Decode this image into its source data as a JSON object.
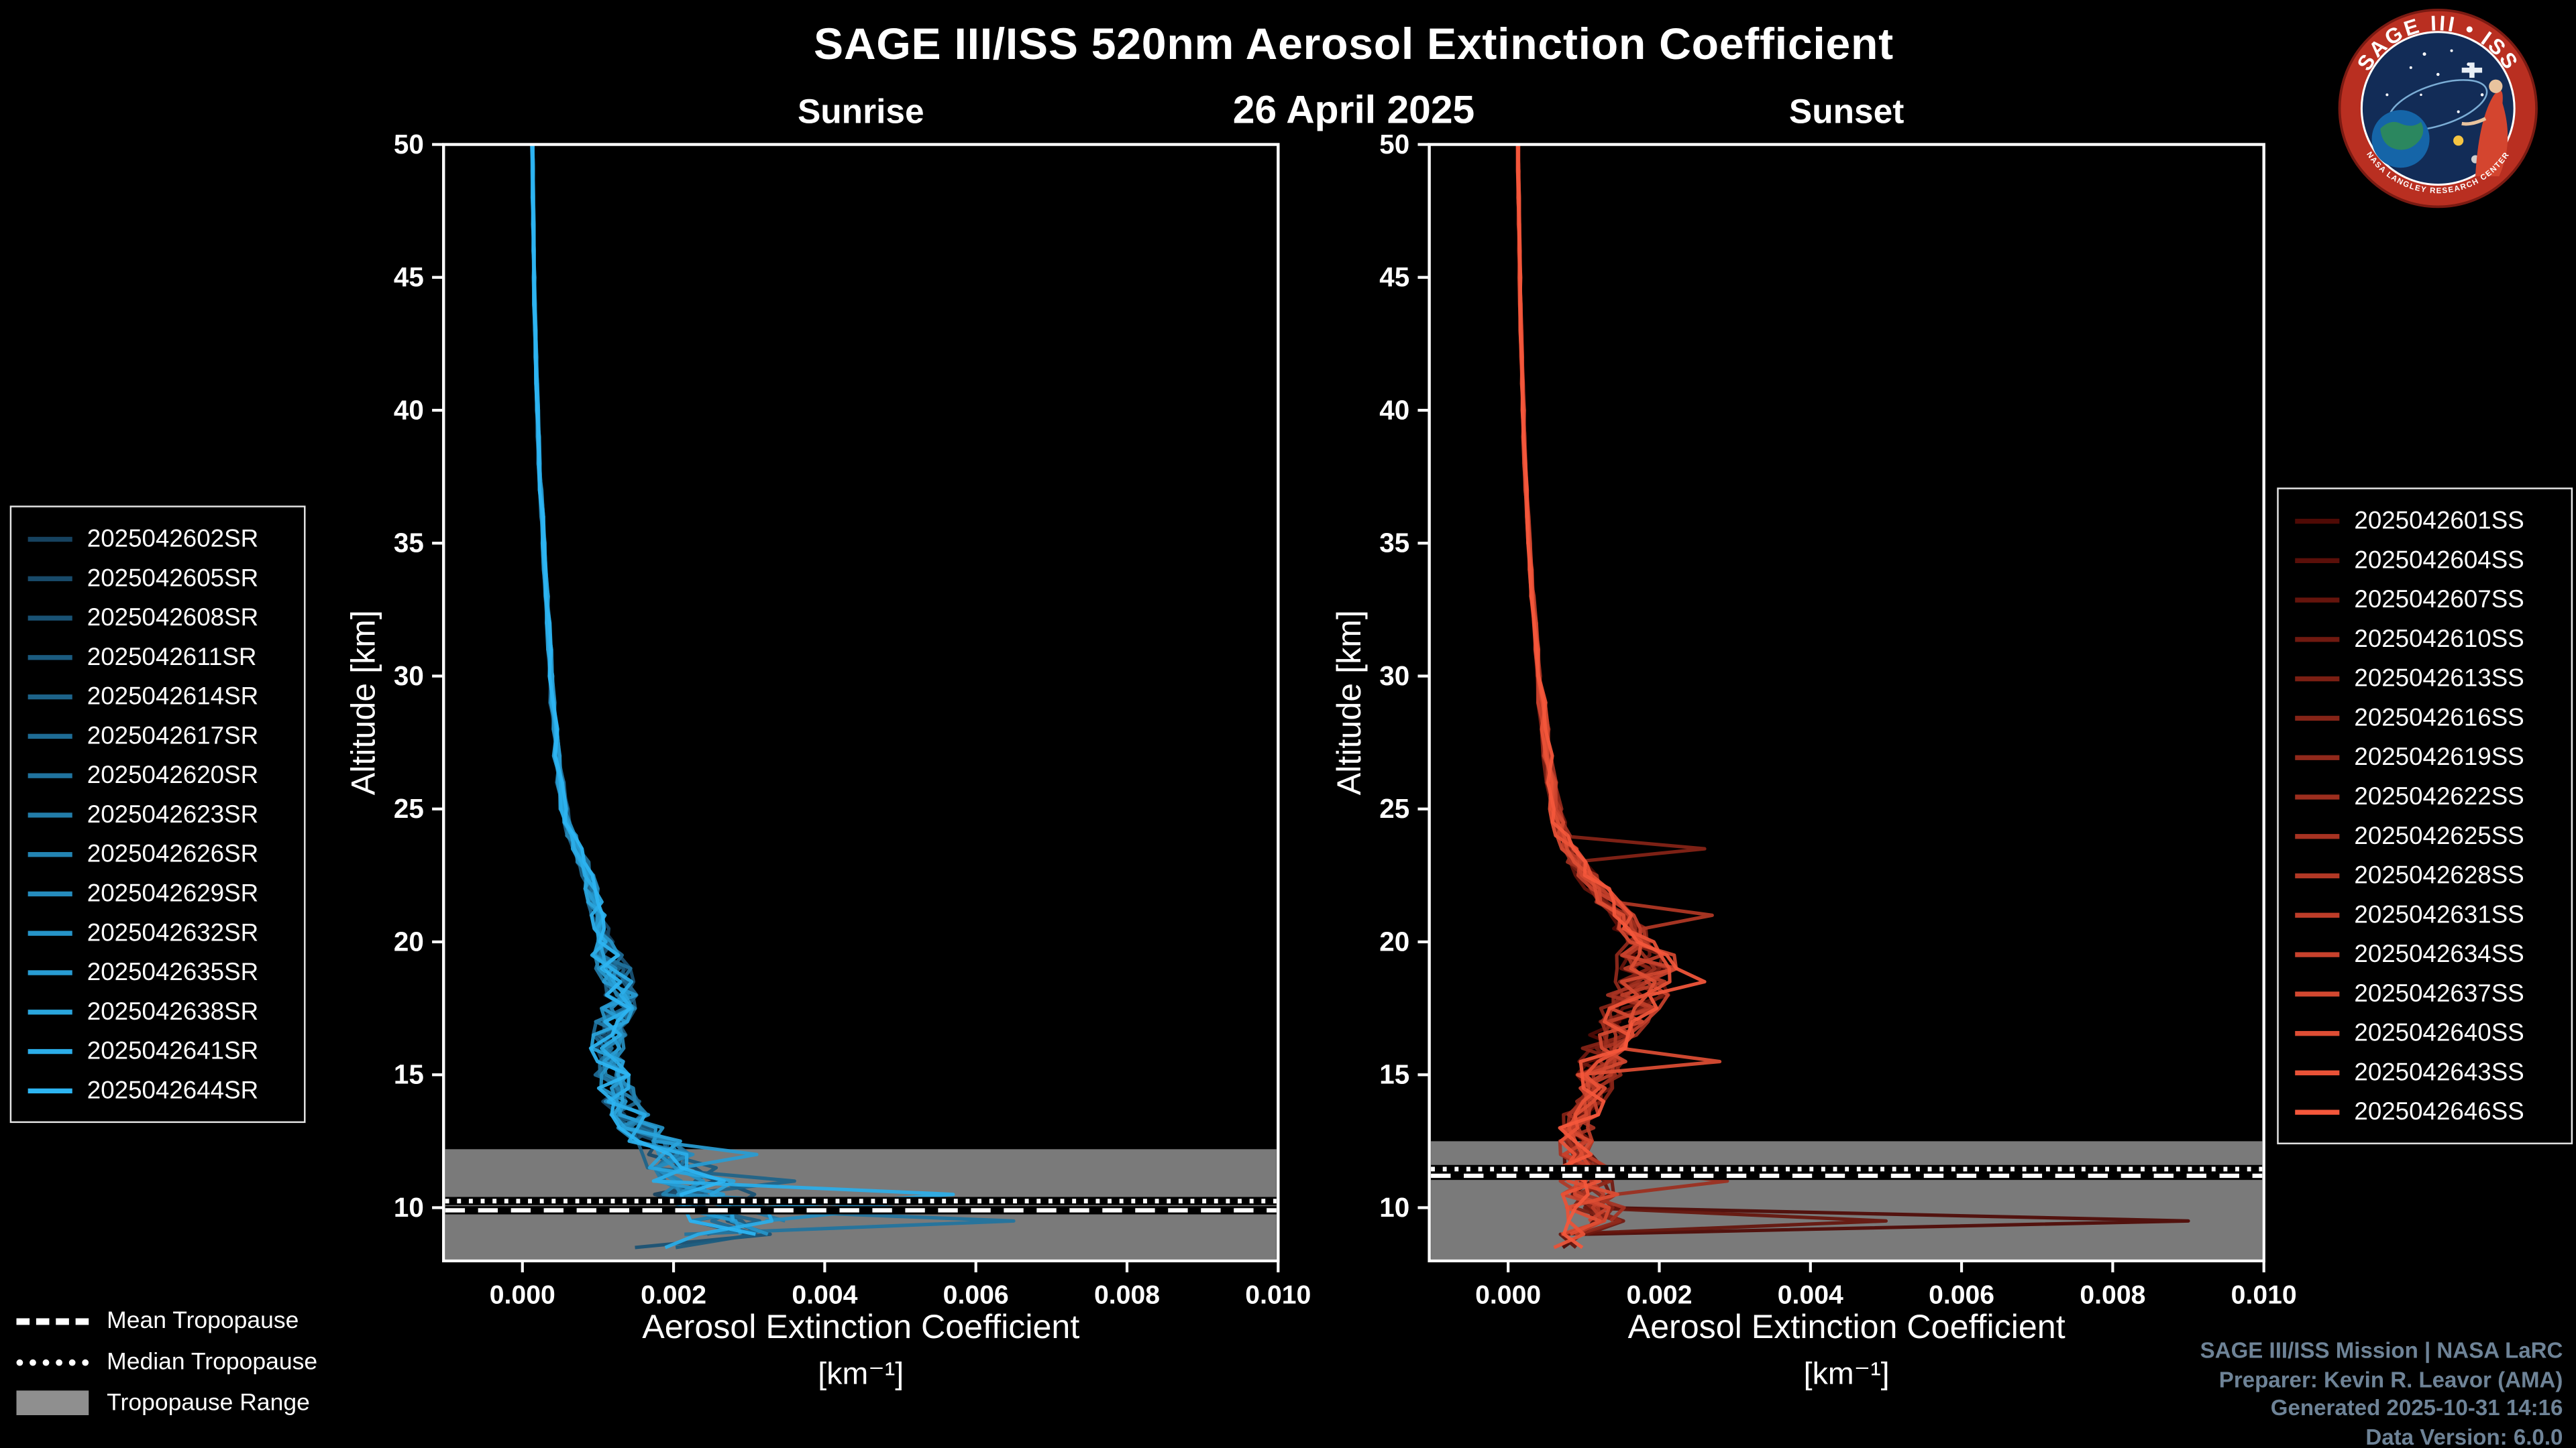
{
  "header": {
    "title": "SAGE III/ISS 520nm Aerosol Extinction Coefficient",
    "date": "26 April 2025"
  },
  "logo": {
    "title": "SAGE III • ISS",
    "footer": "NASA LANGLEY RESEARCH CENTER"
  },
  "tropopause_legend": {
    "mean": "Mean Tropopause",
    "median": "Median Tropopause",
    "range": "Tropopause Range"
  },
  "credits": {
    "line1": "SAGE III/ISS Mission | NASA LaRC",
    "line2": "Preparer: Kevin R. Leavor (AMA)",
    "line3": "Generated 2025-10-31 14:16",
    "line4": "Data Version: 6.0.0"
  },
  "colors": {
    "background": "#000000",
    "text": "#ffffff",
    "credits_text": "#6e8397",
    "tropopause_band": "#8f8f8f",
    "sunrise_gradient": [
      "#16425f",
      "#2db5f2"
    ],
    "sunset_gradient": [
      "#4f0a05",
      "#f4573b"
    ]
  },
  "chart_data": [
    {
      "type": "line",
      "id": "sunrise",
      "title": "Sunrise",
      "xlabel": "Aerosol Extinction Coefficient",
      "xlabel_units": "[km⁻¹]",
      "ylabel": "Altitude [km]",
      "xlim": [
        -0.00104,
        0.01
      ],
      "ylim": [
        8,
        50
      ],
      "xticks": [
        0.0,
        0.002,
        0.004,
        0.006,
        0.008,
        0.01
      ],
      "xtick_labels": [
        "0.000",
        "0.002",
        "0.004",
        "0.006",
        "0.008",
        "0.010"
      ],
      "yticks": [
        10,
        15,
        20,
        25,
        30,
        35,
        40,
        45,
        50
      ],
      "grid": false,
      "legend_position": "outside-left",
      "series_names": [
        "2025042602SR",
        "2025042605SR",
        "2025042608SR",
        "2025042611SR",
        "2025042614SR",
        "2025042617SR",
        "2025042620SR",
        "2025042623SR",
        "2025042626SR",
        "2025042629SR",
        "2025042632SR",
        "2025042635SR",
        "2025042638SR",
        "2025042641SR",
        "2025042644SR"
      ],
      "altitudes_km": [
        50,
        49,
        48,
        47,
        46,
        45,
        44,
        43,
        42,
        41,
        40,
        39,
        38,
        37,
        36,
        35,
        34,
        33,
        32,
        31,
        30,
        29,
        28,
        27,
        26,
        25,
        24.5,
        24,
        23.5,
        23,
        22.5,
        22,
        21.5,
        21,
        20.5,
        20,
        19.5,
        19,
        18.5,
        18,
        17.5,
        17,
        16.5,
        16,
        15.5,
        15,
        14.5,
        14,
        13.5,
        13,
        12.5,
        12,
        11.5,
        11,
        10.5,
        10,
        9.5,
        9,
        8.5
      ],
      "mean_extinction_km1": [
        0.00013,
        0.000135,
        0.00014,
        0.000145,
        0.00015,
        0.000155,
        0.00016,
        0.00017,
        0.00018,
        0.00019,
        0.0002,
        0.00021,
        0.00022,
        0.00024,
        0.00026,
        0.00028,
        0.0003,
        0.00032,
        0.00034,
        0.00036,
        0.00038,
        0.0004,
        0.00043,
        0.00046,
        0.0005,
        0.00055,
        0.0006,
        0.00065,
        0.00072,
        0.0008,
        0.00086,
        0.00091,
        0.00096,
        0.001,
        0.00105,
        0.0011,
        0.00115,
        0.0012,
        0.00125,
        0.00128,
        0.00125,
        0.0012,
        0.00116,
        0.00112,
        0.00115,
        0.0012,
        0.00125,
        0.00132,
        0.00142,
        0.00158,
        0.00176,
        0.00195,
        0.0021,
        0.00222,
        0.0024,
        0.00268,
        0.0029,
        0.00258,
        0.0021
      ],
      "relative_spread": {
        "above_30km": 0.07,
        "km20_30": 0.1,
        "km12_20": 0.2,
        "below_12km": 0.3
      },
      "spikes": [
        {
          "series_index": 13,
          "altitude_km": 10.5,
          "extinction_km1": 0.0057
        },
        {
          "series_index": 6,
          "altitude_km": 9.5,
          "extinction_km1": 0.0065
        },
        {
          "series_index": 9,
          "altitude_km": 10.0,
          "extinction_km1": 0.0049
        },
        {
          "series_index": 4,
          "altitude_km": 11.0,
          "extinction_km1": 0.0036
        },
        {
          "series_index": 11,
          "altitude_km": 12.0,
          "extinction_km1": 0.0031
        }
      ],
      "tropopause": {
        "mean_km": 9.9,
        "median_km": 10.25,
        "range_km": [
          8.0,
          12.2
        ]
      }
    },
    {
      "type": "line",
      "id": "sunset",
      "title": "Sunset",
      "xlabel": "Aerosol Extinction Coefficient",
      "xlabel_units": "[km⁻¹]",
      "ylabel": "Altitude [km]",
      "xlim": [
        -0.00104,
        0.01
      ],
      "ylim": [
        8,
        50
      ],
      "xticks": [
        0.0,
        0.002,
        0.004,
        0.006,
        0.008,
        0.01
      ],
      "xtick_labels": [
        "0.000",
        "0.002",
        "0.004",
        "0.006",
        "0.008",
        "0.010"
      ],
      "yticks": [
        10,
        15,
        20,
        25,
        30,
        35,
        40,
        45,
        50
      ],
      "grid": false,
      "legend_position": "outside-right",
      "series_names": [
        "2025042601SS",
        "2025042604SS",
        "2025042607SS",
        "2025042610SS",
        "2025042613SS",
        "2025042616SS",
        "2025042619SS",
        "2025042622SS",
        "2025042625SS",
        "2025042628SS",
        "2025042631SS",
        "2025042634SS",
        "2025042637SS",
        "2025042640SS",
        "2025042643SS",
        "2025042646SS"
      ],
      "altitudes_km": [
        50,
        49,
        48,
        47,
        46,
        45,
        44,
        43,
        42,
        41,
        40,
        39,
        38,
        37,
        36,
        35,
        34,
        33,
        32,
        31,
        30,
        29,
        28,
        27,
        26,
        25,
        24.5,
        24,
        23.5,
        23,
        22.5,
        22,
        21.5,
        21,
        20.5,
        20,
        19.5,
        19,
        18.5,
        18,
        17.5,
        17,
        16.5,
        16,
        15.5,
        15,
        14.5,
        14,
        13.5,
        13,
        12.5,
        12,
        11.5,
        11,
        10.5,
        10,
        9.5,
        9,
        8.5
      ],
      "mean_extinction_km1": [
        0.00013,
        0.000135,
        0.00014,
        0.000145,
        0.00015,
        0.000155,
        0.00016,
        0.00017,
        0.00018,
        0.00019,
        0.0002,
        0.00021,
        0.00022,
        0.00024,
        0.00026,
        0.00028,
        0.0003,
        0.00032,
        0.00035,
        0.00038,
        0.00041,
        0.00044,
        0.00048,
        0.00052,
        0.00057,
        0.00063,
        0.00067,
        0.00072,
        0.0008,
        0.0009,
        0.00103,
        0.00118,
        0.00133,
        0.00148,
        0.0016,
        0.0017,
        0.00176,
        0.0018,
        0.00176,
        0.0017,
        0.00161,
        0.00151,
        0.00141,
        0.00131,
        0.00125,
        0.0012,
        0.00111,
        0.00102,
        0.00096,
        0.00091,
        0.0009,
        0.00092,
        0.00098,
        0.00105,
        0.0011,
        0.00115,
        0.0012,
        0.001,
        0.0008
      ],
      "relative_spread": {
        "above_30km": 0.07,
        "km20_30": 0.14,
        "km12_20": 0.25,
        "below_12km": 0.35
      },
      "spikes": [
        {
          "series_index": 0,
          "altitude_km": 9.5,
          "extinction_km1": 0.009
        },
        {
          "series_index": 2,
          "altitude_km": 9.5,
          "extinction_km1": 0.005
        },
        {
          "series_index": 7,
          "altitude_km": 11.0,
          "extinction_km1": 0.0029
        },
        {
          "series_index": 13,
          "altitude_km": 15.5,
          "extinction_km1": 0.0028
        },
        {
          "series_index": 9,
          "altitude_km": 21.0,
          "extinction_km1": 0.0027
        },
        {
          "series_index": 15,
          "altitude_km": 18.5,
          "extinction_km1": 0.0026
        },
        {
          "series_index": 5,
          "altitude_km": 23.5,
          "extinction_km1": 0.0026
        }
      ],
      "tropopause": {
        "mean_km": 11.2,
        "median_km": 11.45,
        "range_km": [
          8.0,
          12.5
        ]
      }
    }
  ]
}
